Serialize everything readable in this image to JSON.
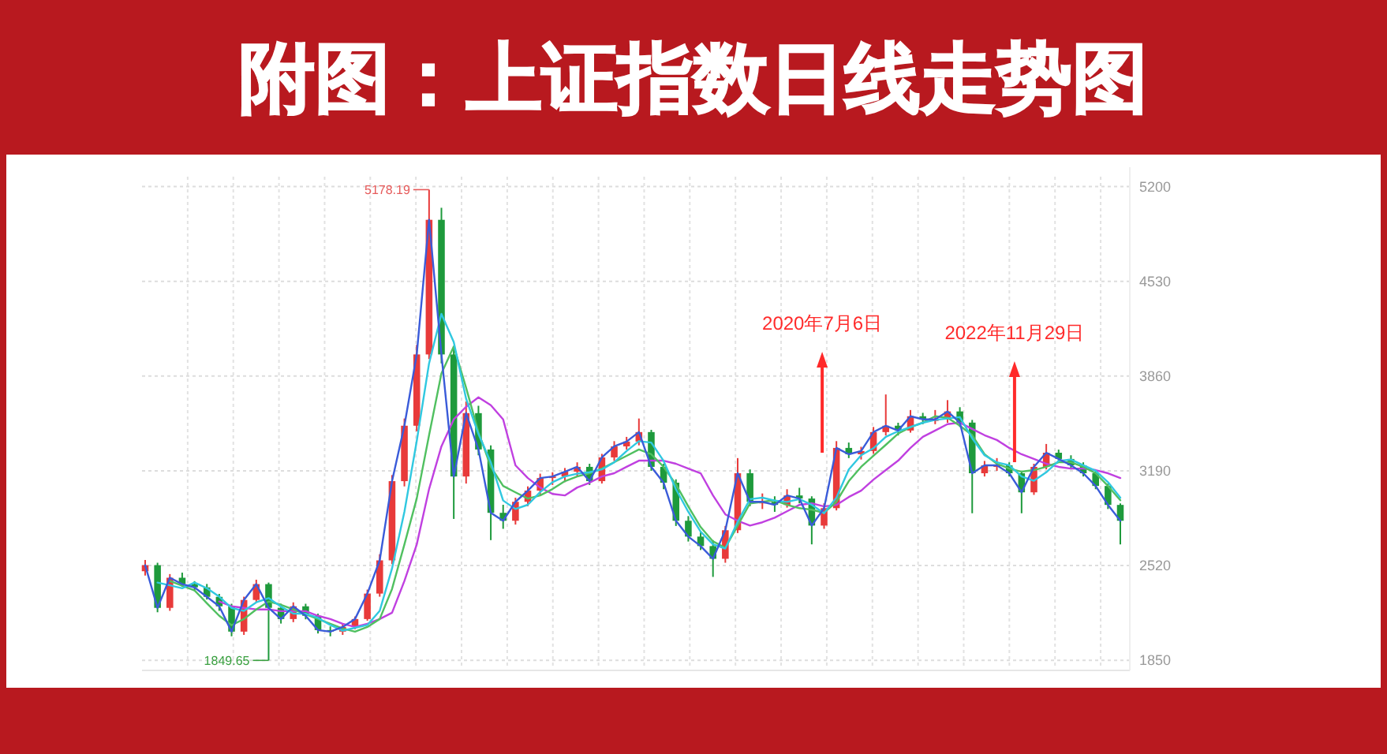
{
  "chart_data": {
    "type": "candlestick",
    "title": "附图：上证指数日线走势图",
    "categories": [
      null,
      null,
      null,
      null,
      null,
      null,
      null,
      null,
      null,
      null,
      null,
      null,
      null,
      null,
      null,
      null,
      null,
      null,
      null,
      null,
      null,
      null,
      null,
      null,
      null,
      null,
      null,
      null,
      null,
      null,
      null,
      null,
      null,
      null,
      null,
      null,
      null,
      null,
      null,
      null,
      null,
      null,
      null,
      null,
      null,
      null,
      null,
      null,
      null,
      null,
      null,
      null,
      null,
      null,
      null,
      null,
      null,
      null,
      null,
      null,
      null,
      null,
      null,
      null,
      null,
      null,
      null,
      null,
      null,
      null,
      null,
      null,
      null,
      null,
      null,
      null,
      null,
      null,
      null,
      null
    ],
    "ohlc": [
      [
        2480,
        2560,
        2450,
        2523
      ],
      [
        2523,
        2540,
        2190,
        2221
      ],
      [
        2221,
        2460,
        2200,
        2434
      ],
      [
        2434,
        2470,
        2370,
        2389
      ],
      [
        2389,
        2410,
        2340,
        2366
      ],
      [
        2366,
        2390,
        2280,
        2299
      ],
      [
        2299,
        2320,
        2200,
        2232
      ],
      [
        2232,
        2250,
        2020,
        2053
      ],
      [
        2053,
        2300,
        2030,
        2277
      ],
      [
        2277,
        2420,
        2260,
        2389
      ],
      [
        2389,
        2400,
        1849.65,
        2221
      ],
      [
        2221,
        2250,
        2110,
        2142
      ],
      [
        2142,
        2260,
        2120,
        2232
      ],
      [
        2232,
        2250,
        2140,
        2165
      ],
      [
        2165,
        2180,
        2040,
        2064
      ],
      [
        2064,
        2090,
        2020,
        2053
      ],
      [
        2053,
        2110,
        2030,
        2086
      ],
      [
        2086,
        2160,
        2070,
        2142
      ],
      [
        2142,
        2350,
        2130,
        2322
      ],
      [
        2322,
        2600,
        2300,
        2557
      ],
      [
        2557,
        3160,
        2530,
        3117
      ],
      [
        3117,
        3560,
        3080,
        3509
      ],
      [
        3509,
        4080,
        3470,
        4013
      ],
      [
        4013,
        5178.19,
        3980,
        4965
      ],
      [
        4965,
        5050,
        3950,
        4013
      ],
      [
        4013,
        4060,
        2850,
        3150
      ],
      [
        3150,
        3680,
        3100,
        3598
      ],
      [
        3598,
        3650,
        3300,
        3341
      ],
      [
        3341,
        3370,
        2700,
        2893
      ],
      [
        2893,
        2950,
        2780,
        2837
      ],
      [
        2837,
        3000,
        2810,
        2971
      ],
      [
        2971,
        3080,
        2940,
        3050
      ],
      [
        3050,
        3170,
        3020,
        3139
      ],
      [
        3139,
        3180,
        3090,
        3150
      ],
      [
        3150,
        3210,
        3110,
        3184
      ],
      [
        3184,
        3250,
        3150,
        3218
      ],
      [
        3218,
        3240,
        3090,
        3117
      ],
      [
        3117,
        3310,
        3100,
        3285
      ],
      [
        3285,
        3400,
        3260,
        3363
      ],
      [
        3363,
        3430,
        3340,
        3397
      ],
      [
        3397,
        3560,
        3370,
        3464
      ],
      [
        3464,
        3480,
        3190,
        3218
      ],
      [
        3218,
        3240,
        3060,
        3106
      ],
      [
        3106,
        3130,
        2800,
        2837
      ],
      [
        2837,
        2870,
        2690,
        2725
      ],
      [
        2725,
        2760,
        2630,
        2658
      ],
      [
        2658,
        2700,
        2440,
        2568
      ],
      [
        2568,
        2800,
        2540,
        2770
      ],
      [
        2770,
        3280,
        2750,
        3173
      ],
      [
        3173,
        3200,
        2940,
        2971
      ],
      [
        2971,
        3030,
        2920,
        2971
      ],
      [
        2971,
        3010,
        2900,
        2949
      ],
      [
        2949,
        3060,
        2930,
        3016
      ],
      [
        3016,
        3070,
        2960,
        2994
      ],
      [
        2994,
        3010,
        2670,
        2803
      ],
      [
        2803,
        2960,
        2780,
        2926
      ],
      [
        2926,
        3400,
        2910,
        3352
      ],
      [
        3352,
        3390,
        3280,
        3307
      ],
      [
        3307,
        3360,
        3270,
        3330
      ],
      [
        3330,
        3500,
        3310,
        3464
      ],
      [
        3464,
        3730,
        3440,
        3509
      ],
      [
        3509,
        3530,
        3440,
        3475
      ],
      [
        3475,
        3620,
        3460,
        3576
      ],
      [
        3576,
        3600,
        3520,
        3554
      ],
      [
        3554,
        3620,
        3520,
        3554
      ],
      [
        3554,
        3690,
        3530,
        3610
      ],
      [
        3610,
        3640,
        3500,
        3531
      ],
      [
        3531,
        3550,
        2890,
        3173
      ],
      [
        3173,
        3260,
        3150,
        3229
      ],
      [
        3229,
        3280,
        3190,
        3229
      ],
      [
        3229,
        3250,
        3150,
        3173
      ],
      [
        3173,
        3190,
        2890,
        3038
      ],
      [
        3038,
        3240,
        3020,
        3218
      ],
      [
        3218,
        3380,
        3200,
        3318
      ],
      [
        3318,
        3340,
        3250,
        3274
      ],
      [
        3274,
        3300,
        3200,
        3229
      ],
      [
        3229,
        3250,
        3150,
        3173
      ],
      [
        3173,
        3190,
        3060,
        3083
      ],
      [
        3083,
        3100,
        2920,
        2949
      ],
      [
        2949,
        2960,
        2670,
        2837
      ]
    ],
    "series": [
      {
        "type": "line",
        "color": "#c040e0",
        "values": [
          null,
          null,
          null,
          null,
          null,
          null,
          2266,
          2232,
          2221,
          2210,
          2210,
          2198,
          2198,
          2198,
          2165,
          2142,
          2109,
          2086,
          2109,
          2142,
          2187,
          2411,
          2669,
          3061,
          3363,
          3554,
          3643,
          3710,
          3654,
          3554,
          3229,
          3139,
          3072,
          3027,
          3016,
          3072,
          3106,
          3150,
          3173,
          3218,
          3262,
          3262,
          3262,
          3240,
          3206,
          3173,
          3016,
          2882,
          2837,
          2803,
          2826,
          2859,
          2904,
          2949,
          2960,
          2938,
          2949,
          3005,
          3050,
          3128,
          3195,
          3262,
          3352,
          3430,
          3475,
          3520,
          3531,
          3486,
          3442,
          3408,
          3352,
          3307,
          3274,
          3240,
          3218,
          3206,
          3206,
          3195,
          3173,
          3139
        ]
      },
      {
        "type": "line",
        "color": "#50c060",
        "values": [
          null,
          null,
          2411,
          2378,
          2344,
          2254,
          2165,
          2098,
          2142,
          2210,
          2266,
          2243,
          2210,
          2176,
          2142,
          2109,
          2075,
          2053,
          2086,
          2142,
          2355,
          2669,
          2994,
          3442,
          3878,
          4069,
          3778,
          3464,
          3218,
          3083,
          3038,
          2994,
          3016,
          3061,
          3117,
          3150,
          3173,
          3206,
          3251,
          3296,
          3341,
          3307,
          3218,
          3094,
          2938,
          2792,
          2691,
          2646,
          2803,
          2960,
          2971,
          2982,
          2949,
          2926,
          2915,
          2893,
          2971,
          3117,
          3218,
          3296,
          3374,
          3453,
          3498,
          3531,
          3576,
          3565,
          3509,
          3442,
          3307,
          3240,
          3206,
          3184,
          3195,
          3218,
          3251,
          3251,
          3218,
          3173,
          3083,
          2982
        ]
      },
      {
        "type": "line",
        "color": "#30c8e0",
        "values": [
          null,
          2400,
          2380,
          2360,
          2400,
          2360,
          2300,
          2220,
          2200,
          2260,
          2290,
          2230,
          2180,
          2180,
          2150,
          2100,
          2060,
          2080,
          2100,
          2200,
          2500,
          2900,
          3400,
          3950,
          4300,
          4100,
          3700,
          3450,
          3250,
          2980,
          2920,
          2950,
          3040,
          3110,
          3150,
          3170,
          3180,
          3200,
          3250,
          3330,
          3400,
          3390,
          3260,
          3060,
          2900,
          2760,
          2670,
          2640,
          2830,
          2990,
          3000,
          2980,
          2970,
          2990,
          2950,
          2890,
          3000,
          3200,
          3300,
          3350,
          3430,
          3470,
          3500,
          3530,
          3550,
          3560,
          3570,
          3420,
          3300,
          3250,
          3230,
          3150,
          3120,
          3180,
          3260,
          3270,
          3230,
          3190,
          3110,
          3000
        ]
      },
      {
        "type": "line",
        "color": "#3a5bd9",
        "values": [
          2523,
          2221,
          2434,
          2389,
          2366,
          2299,
          2232,
          2053,
          2277,
          2389,
          2221,
          2142,
          2232,
          2165,
          2064,
          2053,
          2086,
          2142,
          2322,
          2557,
          3117,
          3509,
          4013,
          4965,
          4013,
          3150,
          3598,
          3341,
          2893,
          2837,
          2971,
          3050,
          3139,
          3150,
          3184,
          3218,
          3117,
          3285,
          3363,
          3397,
          3464,
          3218,
          3106,
          2837,
          2725,
          2658,
          2568,
          2770,
          3173,
          2971,
          2971,
          2949,
          3016,
          2994,
          2803,
          2926,
          3352,
          3307,
          3330,
          3464,
          3509,
          3475,
          3576,
          3554,
          3554,
          3610,
          3531,
          3173,
          3229,
          3229,
          3173,
          3038,
          3218,
          3318,
          3274,
          3229,
          3173,
          3083,
          2949,
          2837
        ]
      }
    ],
    "ylim": [
      1790,
      5270
    ],
    "yticks": [
      1850,
      2520,
      3190,
      3860,
      4530,
      5200
    ],
    "grid": true,
    "tick_labels": "y",
    "annotations": [
      "5178.19",
      "1849.65",
      "2020年7月6日",
      "2022年11月29日"
    ]
  }
}
